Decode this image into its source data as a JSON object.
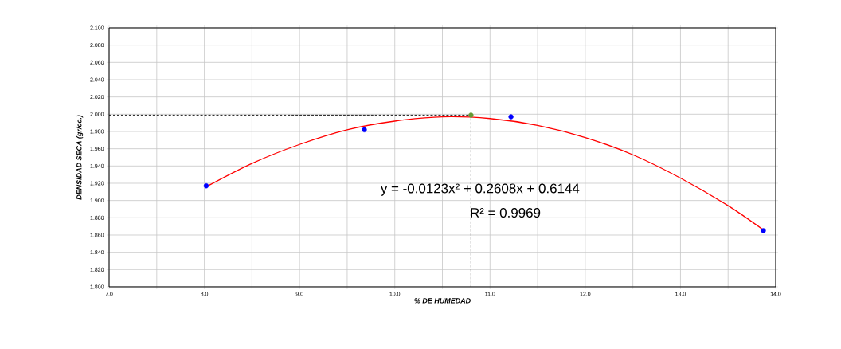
{
  "chart_data": {
    "type": "scatter",
    "xlabel": "% DE HUMEDAD",
    "ylabel": "DENSIDAD SECA (gr/cc.)",
    "xlim": [
      7.0,
      14.0
    ],
    "ylim": [
      1.8,
      2.1
    ],
    "xticks": [
      {
        "value": 7.0,
        "label": "7.0"
      },
      {
        "value": 7.5,
        "label": null
      },
      {
        "value": 8.0,
        "label": "8.0"
      },
      {
        "value": 8.5,
        "label": null
      },
      {
        "value": 9.0,
        "label": "9.0"
      },
      {
        "value": 9.5,
        "label": null
      },
      {
        "value": 10.0,
        "label": "10.0"
      },
      {
        "value": 10.5,
        "label": null
      },
      {
        "value": 11.0,
        "label": "11.0"
      },
      {
        "value": 11.5,
        "label": null
      },
      {
        "value": 12.0,
        "label": "12.0"
      },
      {
        "value": 12.5,
        "label": null
      },
      {
        "value": 13.0,
        "label": "13.0"
      },
      {
        "value": 13.5,
        "label": null
      },
      {
        "value": 14.0,
        "label": "14.0"
      }
    ],
    "yticks": [
      {
        "value": 1.8,
        "label": "1.800"
      },
      {
        "value": 1.82,
        "label": "1.820"
      },
      {
        "value": 1.84,
        "label": "1.840"
      },
      {
        "value": 1.86,
        "label": "1.860"
      },
      {
        "value": 1.88,
        "label": "1.880"
      },
      {
        "value": 1.9,
        "label": "1.900"
      },
      {
        "value": 1.92,
        "label": "1.920"
      },
      {
        "value": 1.94,
        "label": "1.940"
      },
      {
        "value": 1.96,
        "label": "1.960"
      },
      {
        "value": 1.98,
        "label": "1.980"
      },
      {
        "value": 2.0,
        "label": "2.000"
      },
      {
        "value": 2.02,
        "label": "2.020"
      },
      {
        "value": 2.04,
        "label": "2.040"
      },
      {
        "value": 2.06,
        "label": "2.060"
      },
      {
        "value": 2.08,
        "label": "2.080"
      },
      {
        "value": 2.1,
        "label": "2.100"
      }
    ],
    "grid": true,
    "series": [
      {
        "type": "line",
        "color": "#000000",
        "line_style": "dashed",
        "marker": "none",
        "x": [
          7.0,
          10.8,
          10.8
        ],
        "values": [
          1.999,
          1.999,
          1.8
        ]
      },
      {
        "type": "line",
        "color": "#ff0000",
        "marker": "none",
        "x": [
          8.02,
          8.5,
          9.0,
          9.5,
          10.0,
          10.5,
          11.0,
          11.5,
          12.0,
          12.5,
          13.0,
          13.5,
          13.87
        ],
        "values": [
          1.916,
          1.943,
          1.965,
          1.982,
          1.992,
          1.997,
          1.995,
          1.987,
          1.973,
          1.953,
          1.926,
          1.894,
          1.866
        ]
      },
      {
        "color": "#0000ff",
        "marker": "circle",
        "x": [
          8.02,
          9.68,
          11.22,
          13.87
        ],
        "values": [
          1.917,
          1.982,
          1.997,
          1.865
        ]
      },
      {
        "color": "#669933",
        "marker": "circle",
        "x": [
          10.8
        ],
        "values": [
          1.999
        ]
      }
    ],
    "annotations": [
      "y = -0.0123x² + 0.2608x + 0.6144",
      "R² = 0.9969"
    ]
  }
}
